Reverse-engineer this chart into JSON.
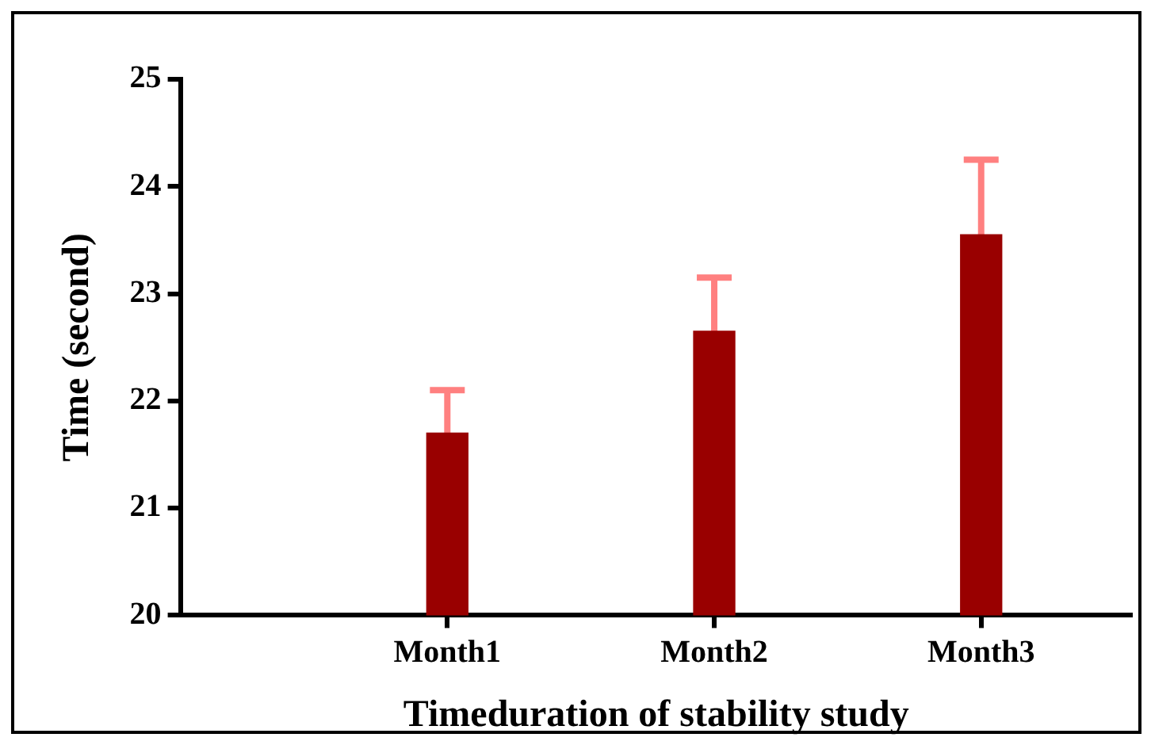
{
  "chart_data": {
    "type": "bar",
    "xlabel": "Timeduration of stability study",
    "ylabel": "Time (second)",
    "categories": [
      "Month1",
      "Month2",
      "Month3"
    ],
    "values": [
      21.7,
      22.65,
      23.55
    ],
    "errors": [
      0.4,
      0.5,
      0.7
    ],
    "color": "#990000",
    "ylim": [
      20,
      25
    ],
    "yticks": [
      20,
      21,
      22,
      23,
      24,
      25
    ],
    "grid": false,
    "legend": false
  }
}
